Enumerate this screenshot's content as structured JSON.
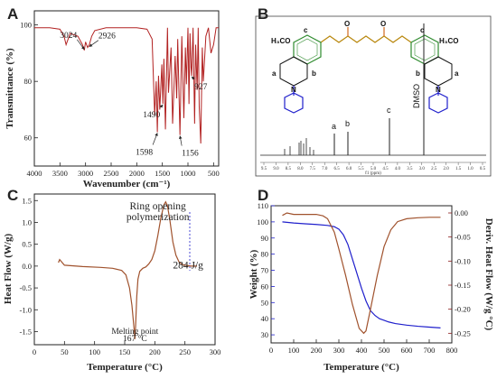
{
  "panels": {
    "a": "A",
    "b": "B",
    "c": "C",
    "d": "D"
  },
  "colors": {
    "red": "#b22222",
    "brown": "#a0522d",
    "blue": "#1f1fcc",
    "darkred": "#8b1a1a",
    "green": "#1a8c1a",
    "text": "#222222"
  },
  "chart_data": [
    {
      "panel": "A",
      "type": "line",
      "xlabel": "Wavenumber (cm⁻¹)",
      "ylabel": "Transmittance (%)",
      "xlim": [
        4000,
        400
      ],
      "ylim": [
        50,
        105
      ],
      "xticks": [
        4000,
        3500,
        3000,
        2500,
        2000,
        1500,
        1000,
        500
      ],
      "yticks": [
        60,
        80,
        100
      ],
      "x": [
        4000,
        3700,
        3500,
        3420,
        3380,
        3300,
        3150,
        3060,
        3024,
        3000,
        2960,
        2926,
        2880,
        2820,
        2600,
        2000,
        1800,
        1700,
        1650,
        1620,
        1598,
        1575,
        1550,
        1510,
        1490,
        1470,
        1440,
        1400,
        1380,
        1330,
        1300,
        1250,
        1220,
        1200,
        1156,
        1120,
        1080,
        1050,
        1030,
        1000,
        980,
        960,
        940,
        927,
        900,
        870,
        850,
        820,
        800,
        780,
        750,
        720,
        700,
        650,
        600,
        550,
        500,
        450,
        400
      ],
      "y": [
        99,
        99,
        98.5,
        96,
        93,
        97,
        96,
        93,
        91,
        94,
        92,
        93,
        96,
        98,
        99,
        99,
        98.5,
        95,
        68,
        80,
        62,
        82,
        70,
        86,
        72,
        88,
        63,
        99,
        76,
        92,
        65,
        89,
        74,
        95,
        61,
        96,
        67,
        92,
        79,
        99,
        72,
        97,
        85,
        82,
        99,
        65,
        93,
        77,
        99,
        71,
        58,
        92,
        80,
        96,
        99,
        90,
        93,
        99,
        99
      ],
      "annotations": [
        {
          "text": "3024",
          "x": 3024,
          "y": 91
        },
        {
          "text": "2926",
          "x": 2926,
          "y": 92
        },
        {
          "text": "1598",
          "x": 1598,
          "y": 62
        },
        {
          "text": "1490",
          "x": 1490,
          "y": 72
        },
        {
          "text": "1156",
          "x": 1156,
          "y": 61
        },
        {
          "text": "927",
          "x": 927,
          "y": 82
        }
      ]
    },
    {
      "panel": "B",
      "type": "line",
      "xlabel": "",
      "ylabel": "",
      "peak_labels": [
        "a",
        "b",
        "c",
        "DMSO"
      ],
      "structure_labels": {
        "c": "c",
        "och3": "H₃CO",
        "a": "a",
        "b": "b",
        "n": "N",
        "o": "O"
      },
      "tick_text": [
        "9.5",
        "9.0",
        "8.5",
        "8.0",
        "7.5",
        "7.0",
        "6.5",
        "6.0",
        "5.5",
        "5.0",
        "4.5",
        "4.0",
        "3.5",
        "3.0",
        "2.5",
        "2.0",
        "1.5",
        "1.0",
        "0.5"
      ],
      "axis_note": "f1 (ppm)"
    },
    {
      "panel": "C",
      "type": "line",
      "xlabel": "Temperature (°C)",
      "ylabel": "Heat Flow (W/g)",
      "xlim": [
        0,
        300
      ],
      "ylim": [
        -1.8,
        1.65
      ],
      "xticks": [
        0,
        50,
        100,
        150,
        200,
        250,
        300
      ],
      "yticks": [
        -1.5,
        -1.0,
        -0.5,
        0.0,
        0.5,
        1.0,
        1.5
      ],
      "x": [
        40,
        42,
        50,
        80,
        110,
        130,
        145,
        152,
        158,
        162,
        164,
        166,
        167,
        168,
        170,
        172,
        175,
        180,
        185,
        190,
        195,
        200,
        205,
        210,
        215,
        218,
        221,
        225,
        230,
        235,
        240,
        245,
        250,
        260,
        270
      ],
      "y": [
        0.08,
        0.15,
        0.02,
        -0.01,
        -0.03,
        -0.05,
        -0.1,
        -0.2,
        -0.5,
        -0.9,
        -1.2,
        -1.5,
        -1.67,
        -1.4,
        -0.7,
        -0.3,
        -0.12,
        -0.05,
        -0.02,
        0.05,
        0.15,
        0.35,
        0.7,
        1.1,
        1.4,
        1.47,
        1.38,
        1.05,
        0.55,
        0.25,
        0.1,
        0.04,
        0.02,
        0.0,
        0.0
      ],
      "annotations": [
        {
          "text": "Ring opening",
          "x": 205,
          "y": 1.3
        },
        {
          "text": "polymerization",
          "x": 205,
          "y": 1.05
        },
        {
          "text": "284 J/g",
          "x": 230,
          "y": -0.05
        },
        {
          "text": "Melting point",
          "x": 167,
          "y": -1.55
        },
        {
          "text": "167 °C",
          "x": 167,
          "y": -1.72
        }
      ]
    },
    {
      "panel": "D",
      "type": "line",
      "xlabel": "Temperature (°C)",
      "ylabel": "Weight (%)",
      "ylabel2": "Deriv. Heat Flow (W/g °C)",
      "xlim": [
        0,
        800
      ],
      "ylim": [
        25,
        110
      ],
      "ylim2": [
        -0.27,
        0.015
      ],
      "xticks": [
        0,
        100,
        200,
        300,
        400,
        500,
        600,
        700,
        800
      ],
      "yticks": [
        30,
        40,
        50,
        60,
        70,
        80,
        90,
        100,
        110
      ],
      "yticks2": [
        0.0,
        -0.05,
        -0.1,
        -0.15,
        -0.2,
        -0.25
      ],
      "series": [
        {
          "name": "Weight",
          "axis": "left",
          "x": [
            50,
            100,
            150,
            200,
            250,
            280,
            300,
            320,
            340,
            360,
            380,
            400,
            420,
            440,
            460,
            480,
            500,
            520,
            550,
            600,
            650,
            700,
            750
          ],
          "y": [
            100,
            99.3,
            98.8,
            98.4,
            97.8,
            97,
            95.5,
            92,
            86,
            77,
            68,
            59,
            51,
            45,
            42,
            40,
            39,
            38,
            37,
            36,
            35.3,
            34.8,
            34.3
          ]
        },
        {
          "name": "Deriv. Heat Flow",
          "axis": "right",
          "x": [
            50,
            70,
            100,
            150,
            200,
            230,
            250,
            280,
            300,
            330,
            360,
            390,
            410,
            420,
            440,
            470,
            500,
            530,
            560,
            600,
            650,
            700,
            750
          ],
          "y": [
            -0.005,
            0.0,
            -0.003,
            -0.003,
            -0.003,
            -0.006,
            -0.012,
            -0.04,
            -0.075,
            -0.13,
            -0.19,
            -0.24,
            -0.25,
            -0.245,
            -0.2,
            -0.13,
            -0.07,
            -0.035,
            -0.018,
            -0.012,
            -0.01,
            -0.009,
            -0.009
          ]
        }
      ]
    }
  ]
}
